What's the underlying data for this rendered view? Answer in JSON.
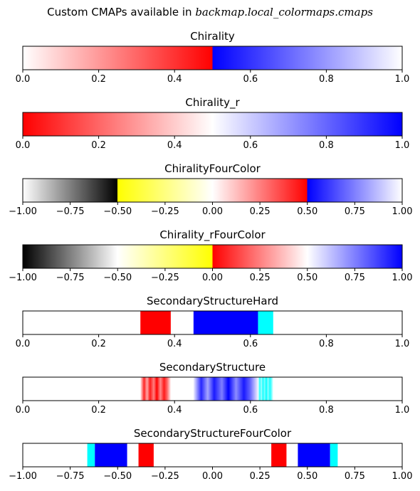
{
  "figure": {
    "title_prefix": "Custom CMAPs available in ",
    "title_math": "backmap.local_colormaps.cmaps"
  },
  "chart_data": [
    {
      "type": "colorbar",
      "title": "Chirality",
      "xlim": [
        0,
        1
      ],
      "ticks": [
        0,
        0.2,
        0.4,
        0.6,
        0.8,
        1.0
      ],
      "tick_labels": [
        "0.0",
        "0.2",
        "0.4",
        "0.6",
        "0.8",
        "1.0"
      ],
      "gradient_stops": [
        {
          "value": 0.0,
          "color": "#ffffff"
        },
        {
          "value": 0.5,
          "color": "#ff0000"
        },
        {
          "value": 0.5,
          "color": "#0000ff"
        },
        {
          "value": 1.0,
          "color": "#ffffff"
        }
      ]
    },
    {
      "type": "colorbar",
      "title": "Chirality_r",
      "xlim": [
        0,
        1
      ],
      "ticks": [
        0,
        0.2,
        0.4,
        0.6,
        0.8,
        1.0
      ],
      "tick_labels": [
        "0.0",
        "0.2",
        "0.4",
        "0.6",
        "0.8",
        "1.0"
      ],
      "gradient_stops": [
        {
          "value": 0.0,
          "color": "#ff0000"
        },
        {
          "value": 0.5,
          "color": "#ffffff"
        },
        {
          "value": 1.0,
          "color": "#0000ff"
        }
      ]
    },
    {
      "type": "colorbar",
      "title": "ChiralityFourColor",
      "xlim": [
        -1,
        1
      ],
      "ticks": [
        -1,
        -0.75,
        -0.5,
        -0.25,
        0,
        0.25,
        0.5,
        0.75,
        1.0
      ],
      "tick_labels": [
        "−1.00",
        "−0.75",
        "−0.50",
        "−0.25",
        "0.00",
        "0.25",
        "0.50",
        "0.75",
        "1.00"
      ],
      "gradient_stops": [
        {
          "value": -1.0,
          "color": "#ffffff"
        },
        {
          "value": -0.5,
          "color": "#000000"
        },
        {
          "value": -0.5,
          "color": "#ffff00"
        },
        {
          "value": 0.0,
          "color": "#ffffff"
        },
        {
          "value": 0.5,
          "color": "#ff0000"
        },
        {
          "value": 0.5,
          "color": "#0000ff"
        },
        {
          "value": 1.0,
          "color": "#ffffff"
        }
      ]
    },
    {
      "type": "colorbar",
      "title": "Chirality_rFourColor",
      "xlim": [
        -1,
        1
      ],
      "ticks": [
        -1,
        -0.75,
        -0.5,
        -0.25,
        0,
        0.25,
        0.5,
        0.75,
        1.0
      ],
      "tick_labels": [
        "−1.00",
        "−0.75",
        "−0.50",
        "−0.25",
        "0.00",
        "0.25",
        "0.50",
        "0.75",
        "1.00"
      ],
      "gradient_stops": [
        {
          "value": -1.0,
          "color": "#000000"
        },
        {
          "value": -0.5,
          "color": "#ffffff"
        },
        {
          "value": 0.0,
          "color": "#ffff00"
        },
        {
          "value": 0.0,
          "color": "#ff0000"
        },
        {
          "value": 0.5,
          "color": "#ffffff"
        },
        {
          "value": 1.0,
          "color": "#0000ff"
        }
      ]
    },
    {
      "type": "colorbar",
      "title": "SecondaryStructureHard",
      "xlim": [
        0,
        1
      ],
      "ticks": [
        0,
        0.2,
        0.4,
        0.6,
        0.8,
        1.0
      ],
      "tick_labels": [
        "0.0",
        "0.2",
        "0.4",
        "0.6",
        "0.8",
        "1.0"
      ],
      "segments": [
        {
          "from": 0.31,
          "to": 0.39,
          "color": "#ff0000"
        },
        {
          "from": 0.45,
          "to": 0.62,
          "color": "#0000ff"
        },
        {
          "from": 0.62,
          "to": 0.66,
          "color": "#00ffff"
        }
      ]
    },
    {
      "type": "colorbar",
      "title": "SecondaryStructure",
      "xlim": [
        0,
        1
      ],
      "ticks": [
        0,
        0.2,
        0.4,
        0.6,
        0.8,
        1.0
      ],
      "tick_labels": [
        "0.0",
        "0.2",
        "0.4",
        "0.6",
        "0.8",
        "1.0"
      ],
      "soft_bands": [
        {
          "from": 0.31,
          "to": 0.39,
          "color": "#ff0000"
        },
        {
          "from": 0.45,
          "to": 0.62,
          "color": "#0000ff"
        },
        {
          "from": 0.62,
          "to": 0.66,
          "color": "#00ffff"
        }
      ]
    },
    {
      "type": "colorbar",
      "title": "SecondaryStructureFourColor",
      "xlim": [
        -1,
        1
      ],
      "ticks": [
        -1,
        -0.75,
        -0.5,
        -0.25,
        0,
        0.25,
        0.5,
        0.75,
        1.0
      ],
      "tick_labels": [
        "−1.00",
        "−0.75",
        "−0.50",
        "−0.25",
        "0.00",
        "0.25",
        "0.50",
        "0.75",
        "1.00"
      ],
      "segments": [
        {
          "from": -0.66,
          "to": -0.62,
          "color": "#00ffff"
        },
        {
          "from": -0.62,
          "to": -0.45,
          "color": "#0000ff"
        },
        {
          "from": -0.39,
          "to": -0.31,
          "color": "#ff0000"
        },
        {
          "from": 0.31,
          "to": 0.39,
          "color": "#ff0000"
        },
        {
          "from": 0.45,
          "to": 0.62,
          "color": "#0000ff"
        },
        {
          "from": 0.62,
          "to": 0.66,
          "color": "#00ffff"
        }
      ]
    }
  ]
}
